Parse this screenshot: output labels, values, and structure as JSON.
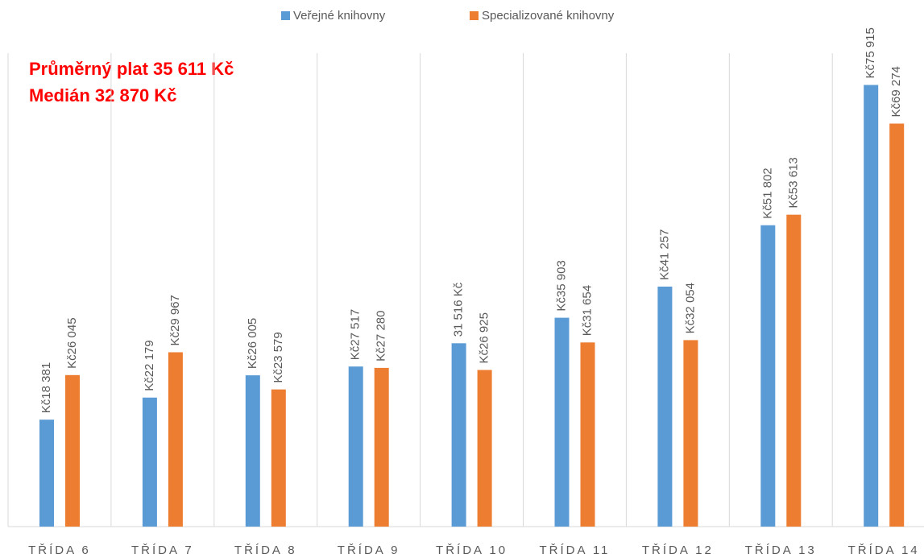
{
  "chart_data": {
    "type": "bar",
    "annotations": [
      "Průměrný plat 35 611 Kč",
      "Medián 32 870 Kč"
    ],
    "categories": [
      "TŘÍDA 6",
      "TŘÍDA 7",
      "TŘÍDA 8",
      "TŘÍDA 9",
      "TŘÍDA 10",
      "TŘÍDA 11",
      "TŘÍDA 12",
      "TŘÍDA 13",
      "TŘÍDA 14"
    ],
    "series": [
      {
        "name": "Veřejné knihovny",
        "color": "#5b9bd5",
        "values": [
          18381,
          22179,
          26005,
          27517,
          31516,
          35903,
          41257,
          51802,
          75915
        ],
        "value_labels": [
          "Kč18 381",
          "Kč22 179",
          "Kč26 005",
          "Kč27 517",
          "31 516 Kč",
          "Kč35 903",
          "Kč41 257",
          "Kč51 802",
          "Kč75 915"
        ]
      },
      {
        "name": "Specializované knihovny",
        "color": "#ed7d31",
        "values": [
          26045,
          29967,
          23579,
          27280,
          26925,
          31654,
          32054,
          53613,
          69274
        ],
        "value_labels": [
          "Kč26 045",
          "Kč29 967",
          "Kč23 579",
          "Kč27 280",
          "Kč26 925",
          "Kč31 654",
          "Kč32 054",
          "Kč53 613",
          "Kč69 274"
        ]
      }
    ],
    "ylim": [
      0,
      80000
    ],
    "legend": "top",
    "annotation_color": "#ff0000"
  }
}
